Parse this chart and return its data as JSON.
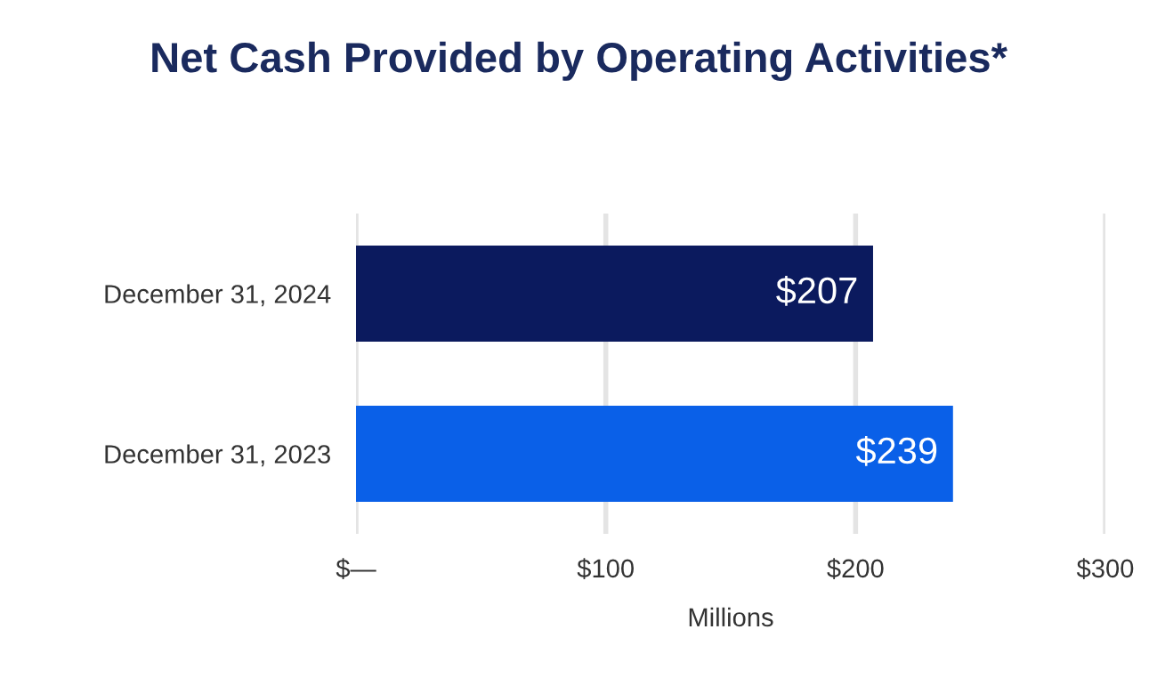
{
  "chart_data": {
    "type": "bar",
    "orientation": "horizontal",
    "title": "Net Cash Provided by Operating Activities*",
    "xlabel": "Millions",
    "categories": [
      "December 31, 2024",
      "December 31, 2023"
    ],
    "values": [
      207,
      239
    ],
    "colors": [
      "#0b1a5e",
      "#0a60e8"
    ],
    "value_labels": [
      "$207",
      "$239"
    ],
    "xlim": [
      0,
      300
    ],
    "xticks": [
      {
        "value": 0,
        "label": "$—"
      },
      {
        "value": 100,
        "label": "$100"
      },
      {
        "value": 200,
        "label": "$200"
      },
      {
        "value": 300,
        "label": "$300"
      }
    ],
    "grid": "x"
  }
}
